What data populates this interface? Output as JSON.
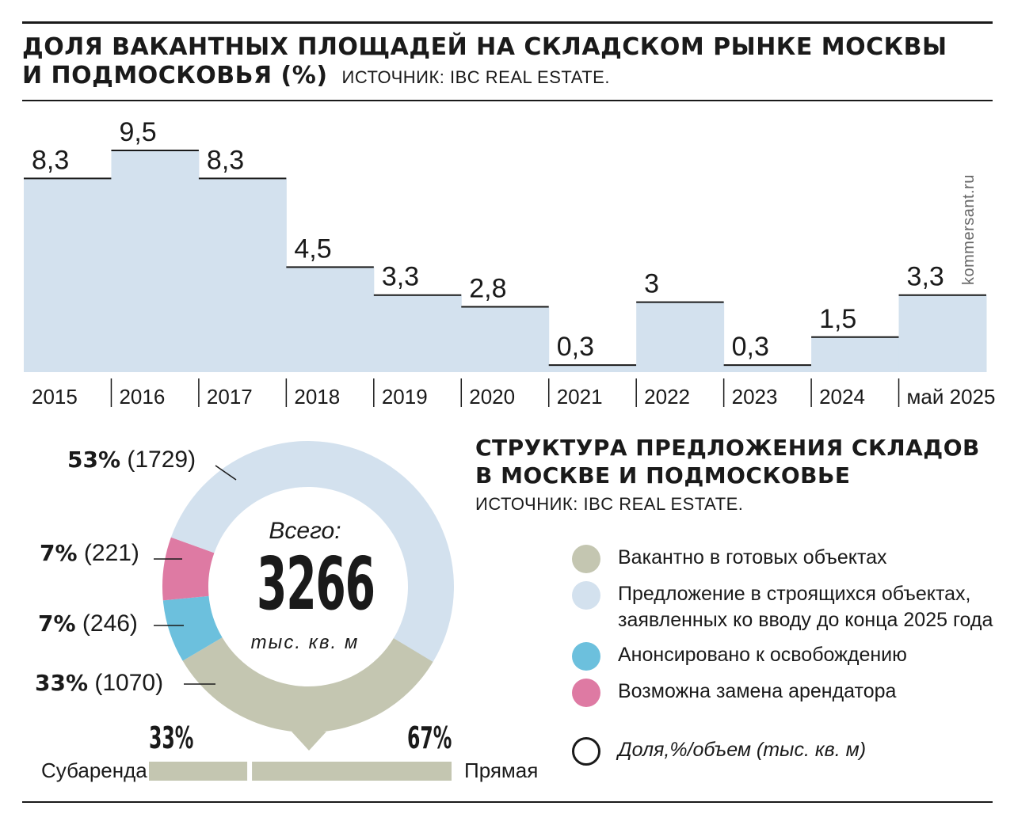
{
  "top_chart": {
    "title_line1": "ДОЛЯ ВАКАНТНЫХ ПЛОЩАДЕЙ НА СКЛАДСКОМ РЫНКЕ МОСКВЫ",
    "title_line2": "И ПОДМОСКОВЬЯ (%)",
    "source": "ИСТОЧНИК: IBC REAL ESTATE."
  },
  "watermark": "kommersant.ru",
  "chart_data": [
    {
      "type": "bar",
      "title": "ДОЛЯ ВАКАНТНЫХ ПЛОЩАДЕЙ НА СКЛАДСКОМ РЫНКЕ МОСКВЫ И ПОДМОСКОВЬЯ (%)",
      "categories": [
        "2015",
        "2016",
        "2017",
        "2018",
        "2019",
        "2020",
        "2021",
        "2022",
        "2023",
        "2024",
        "май 2025"
      ],
      "values": [
        8.3,
        9.5,
        8.3,
        4.5,
        3.3,
        2.8,
        0.3,
        3,
        0.3,
        1.5,
        3.3
      ],
      "value_labels": [
        "8,3",
        "9,5",
        "8,3",
        "4,5",
        "3,3",
        "2,8",
        "0,3",
        "3",
        "0,3",
        "1,5",
        "3,3"
      ],
      "ylim": [
        0,
        9.5
      ],
      "grid": false,
      "color": "#d3e1ee"
    },
    {
      "type": "pie",
      "title": "СТРУКТУРА ПРЕДЛОЖЕНИЯ СКЛАДОВ В МОСКВЕ И ПОДМОСКОВЬЕ",
      "slices": [
        {
          "name": "Предложение в строящихся объектах, заявленных ко вводу до конца 2025 года",
          "percent": 53,
          "volume": 1729,
          "color": "#d3e1ee"
        },
        {
          "name": "Вакантно в готовых объектах",
          "percent": 33,
          "volume": 1070,
          "color": "#c4c6b1"
        },
        {
          "name": "Анонсировано к освобождению",
          "percent": 7,
          "volume": 246,
          "color": "#6cc0dd"
        },
        {
          "name": "Возможна замена арендатора",
          "percent": 7,
          "volume": 221,
          "color": "#de7aa3"
        }
      ],
      "total": 3266,
      "split": [
        {
          "name": "Субаренда",
          "percent": 33
        },
        {
          "name": "Прямая",
          "percent": 67
        }
      ]
    }
  ],
  "donut": {
    "labels": [
      {
        "pct": "53%",
        "vol": "(1729)"
      },
      {
        "pct": "7%",
        "vol": "(221)"
      },
      {
        "pct": "7%",
        "vol": "(246)"
      },
      {
        "pct": "33%",
        "vol": "(1070)"
      }
    ],
    "center_caption": "Всего:",
    "center_value": "3266",
    "center_unit": "тыс. кв. м",
    "split_left_pct": "33%",
    "split_right_pct": "67%",
    "split_left_label": "Субаренда",
    "split_right_label": "Прямая"
  },
  "structure": {
    "title_line1": "СТРУКТУРА ПРЕДЛОЖЕНИЯ СКЛАДОВ",
    "title_line2": "В МОСКВЕ И ПОДМОСКОВЬЕ",
    "source": "ИСТОЧНИК: IBC REAL ESTATE."
  },
  "legend": [
    {
      "label": "Вакантно в готовых объектах",
      "color": "#c4c6b1"
    },
    {
      "label_line1": "Предложение в строящихся объектах,",
      "label_line2": "заявленных ко вводу до конца 2025 года",
      "color": "#d3e1ee"
    },
    {
      "label": "Анонсировано к освобождению",
      "color": "#6cc0dd"
    },
    {
      "label": "Возможна замена арендатора",
      "color": "#de7aa3"
    },
    {
      "label": "Доля,%/объем (тыс. кв. м)"
    }
  ]
}
